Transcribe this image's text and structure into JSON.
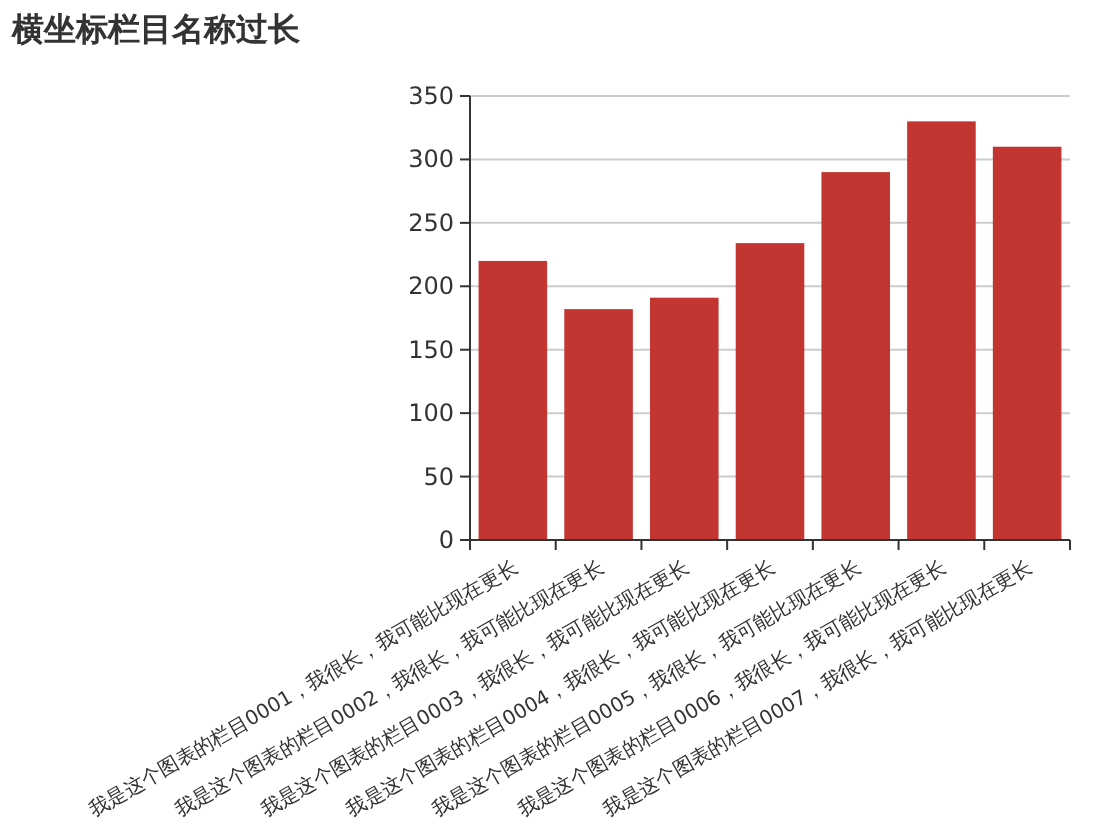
{
  "chart_data": {
    "type": "bar",
    "title": "横坐标栏目名称过长",
    "categories": [
      "我是这个图表的栏目0001，我很长，我可能比现在更长",
      "我是这个图表的栏目0002，我很长，我可能比现在更长",
      "我是这个图表的栏目0003，我很长，我可能比现在更长",
      "我是这个图表的栏目0004，我很长，我可能比现在更长",
      "我是这个图表的栏目0005，我很长，我可能比现在更长",
      "我是这个图表的栏目0006，我很长，我可能比现在更长",
      "我是这个图表的栏目0007，我很长，我可能比现在更长"
    ],
    "values": [
      220,
      182,
      191,
      234,
      290,
      330,
      310
    ],
    "color": "#c23531",
    "ylim": [
      0,
      350
    ],
    "yticks": [
      0,
      50,
      100,
      150,
      200,
      250,
      300,
      350
    ],
    "grid": "y"
  }
}
